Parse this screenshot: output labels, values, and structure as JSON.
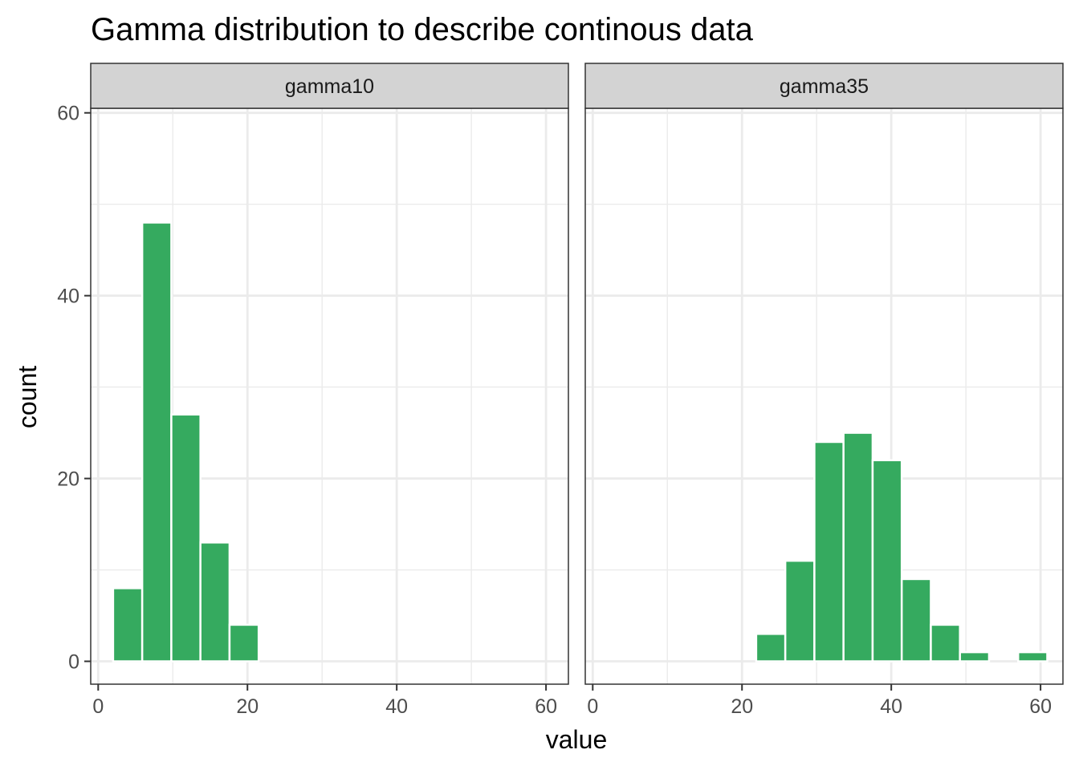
{
  "chart_data": {
    "type": "bar",
    "title": "Gamma distribution to describe continous data",
    "xlabel": "value",
    "ylabel": "count",
    "xlim": [
      -1,
      63
    ],
    "ylim": [
      -2.5,
      60.5
    ],
    "x_ticks": [
      0,
      20,
      40,
      60
    ],
    "y_ticks": [
      0,
      20,
      40,
      60
    ],
    "grid": true,
    "bin_width": 3.9,
    "colors": {
      "bar_fill": "#35aa5f",
      "bar_stroke": "#ffffff",
      "strip_fill": "#d3d3d3",
      "grid": "#ebebeb",
      "panel_border": "#333333"
    },
    "facets": [
      {
        "label": "gamma10",
        "bins": [
          {
            "x": 2.0,
            "count": 8
          },
          {
            "x": 5.9,
            "count": 48
          },
          {
            "x": 9.8,
            "count": 27
          },
          {
            "x": 13.7,
            "count": 13
          },
          {
            "x": 17.6,
            "count": 4
          },
          {
            "x": 21.5,
            "count": 0
          },
          {
            "x": 25.4,
            "count": 0
          },
          {
            "x": 29.3,
            "count": 0
          },
          {
            "x": 33.2,
            "count": 0
          },
          {
            "x": 37.1,
            "count": 0
          },
          {
            "x": 41.0,
            "count": 0
          },
          {
            "x": 44.9,
            "count": 0
          },
          {
            "x": 48.8,
            "count": 0
          },
          {
            "x": 52.7,
            "count": 0
          },
          {
            "x": 56.6,
            "count": 0
          }
        ]
      },
      {
        "label": "gamma35",
        "bins": [
          {
            "x": 2.0,
            "count": 0
          },
          {
            "x": 5.9,
            "count": 0
          },
          {
            "x": 9.8,
            "count": 0
          },
          {
            "x": 13.7,
            "count": 0
          },
          {
            "x": 17.6,
            "count": 0
          },
          {
            "x": 21.9,
            "count": 3
          },
          {
            "x": 25.8,
            "count": 11
          },
          {
            "x": 29.7,
            "count": 24
          },
          {
            "x": 33.6,
            "count": 25
          },
          {
            "x": 37.5,
            "count": 22
          },
          {
            "x": 41.4,
            "count": 9
          },
          {
            "x": 45.3,
            "count": 4
          },
          {
            "x": 49.2,
            "count": 1
          },
          {
            "x": 53.1,
            "count": 0
          },
          {
            "x": 57.0,
            "count": 1
          }
        ]
      }
    ]
  }
}
